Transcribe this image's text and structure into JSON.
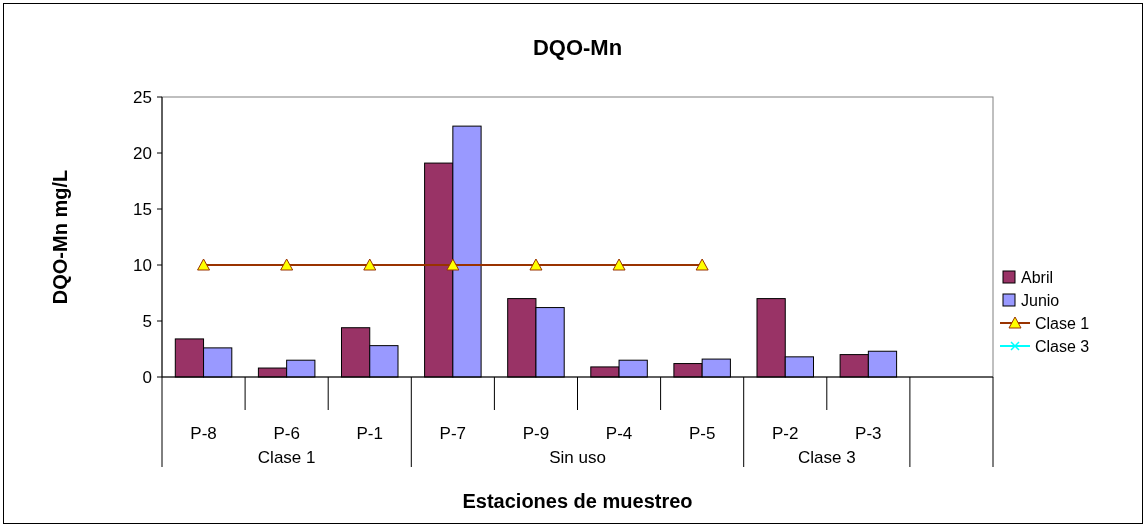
{
  "chart_data": {
    "type": "bar",
    "title": "DQO-Mn",
    "xlabel": "Estaciones de muestreo",
    "ylabel": "DQO-Mn mg/L",
    "categories": [
      "P-8",
      "P-6",
      "P-1",
      "P-7",
      "P-9",
      "P-4",
      "P-5",
      "P-2",
      "P-3",
      null
    ],
    "series": [
      {
        "name": "Abril",
        "color": "#993366",
        "values": [
          3.4,
          0.8,
          4.4,
          19.1,
          7.0,
          0.9,
          1.2,
          7.0,
          2.0,
          null
        ]
      },
      {
        "name": "Junio",
        "color": "#9999ff",
        "values": [
          2.6,
          1.5,
          2.8,
          22.4,
          6.2,
          1.5,
          1.6,
          1.8,
          2.3,
          null
        ]
      },
      {
        "name": "Clase 1",
        "type": "line",
        "color": "#993300",
        "marker": "triangle",
        "values": [
          10,
          10,
          10,
          10,
          10,
          10,
          10,
          null,
          null,
          null
        ]
      },
      {
        "name": "Clase 3",
        "type": "line",
        "color": "#00ffff",
        "marker": "cross",
        "values": [
          null,
          null,
          null,
          null,
          null,
          null,
          null,
          null,
          null,
          null
        ]
      }
    ],
    "annotations": [
      "Clase 1",
      "Sin uso",
      "Clase 3"
    ],
    "ylim": [
      0,
      25
    ],
    "yticks": [
      0,
      5,
      10,
      15,
      20,
      25
    ],
    "legend": "right"
  }
}
